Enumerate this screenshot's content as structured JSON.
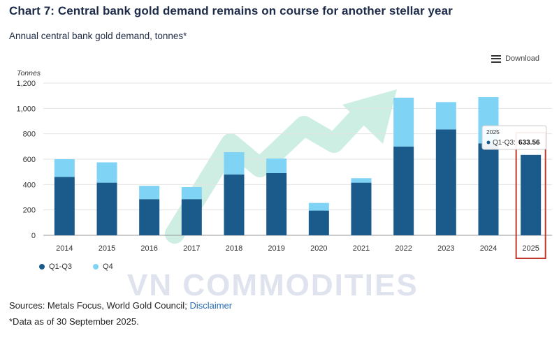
{
  "title": "Chart 7: Central bank gold demand remains on course for another stellar year",
  "subtitle": "Annual central bank gold demand, tonnes*",
  "download_label": "Download",
  "watermark": "VN COMMODITIES",
  "sources": {
    "text": "Sources: Metals Focus, World Gold Council;",
    "link": "Disclaimer"
  },
  "note": "*Data as of 30 September 2025.",
  "tooltip": {
    "year": "2025",
    "series": "Q1-Q3",
    "value": "633.56"
  },
  "colors": {
    "q1q3": "#1a5b8c",
    "q4": "#7fd3f5",
    "highlight": "#c0392b"
  },
  "chart_data": {
    "type": "bar",
    "stacked": true,
    "yaxis_title": "Tonnes",
    "ylim": [
      0,
      1200
    ],
    "yticks": [
      "0",
      "200",
      "400",
      "600",
      "800",
      "1,000",
      "1,200"
    ],
    "ytick_values": [
      0,
      200,
      400,
      600,
      800,
      1000,
      1200
    ],
    "categories": [
      "2014",
      "2015",
      "2016",
      "2017",
      "2018",
      "2019",
      "2020",
      "2021",
      "2022",
      "2023",
      "2024",
      "2025"
    ],
    "series": [
      {
        "name": "Q1-Q3",
        "values": [
          460,
          415,
          285,
          285,
          480,
          490,
          195,
          415,
          700,
          835,
          725,
          634
        ]
      },
      {
        "name": "Q4",
        "values": [
          140,
          160,
          105,
          95,
          175,
          115,
          60,
          35,
          385,
          215,
          365,
          0
        ]
      }
    ],
    "highlighted_category": "2025",
    "legend_position": "bottom-left"
  }
}
